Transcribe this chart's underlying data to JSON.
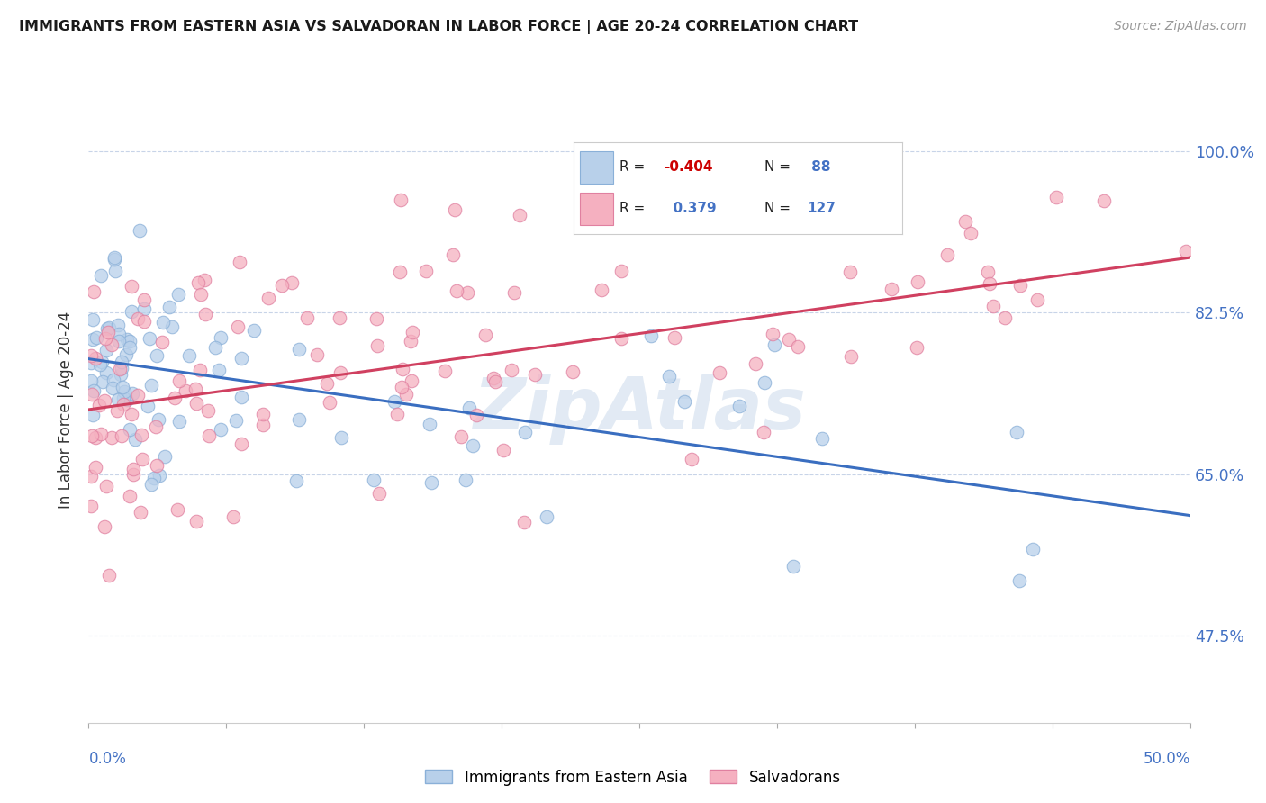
{
  "title": "IMMIGRANTS FROM EASTERN ASIA VS SALVADORAN IN LABOR FORCE | AGE 20-24 CORRELATION CHART",
  "source": "Source: ZipAtlas.com",
  "ylabel": "In Labor Force | Age 20-24",
  "yticks": [
    0.475,
    0.65,
    0.825,
    1.0
  ],
  "ytick_labels": [
    "47.5%",
    "65.0%",
    "82.5%",
    "100.0%"
  ],
  "xmin": 0.0,
  "xmax": 0.5,
  "ymin": 0.38,
  "ymax": 1.06,
  "blue_color": "#b8d0ea",
  "blue_edge": "#8ab0d8",
  "pink_color": "#f5b0c0",
  "pink_edge": "#e080a0",
  "blue_line_color": "#3a6ec0",
  "pink_line_color": "#d04060",
  "legend_label1": "Immigrants from Eastern Asia",
  "legend_label2": "Salvadorans",
  "blue_trend_x": [
    0.0,
    0.5
  ],
  "blue_trend_y": [
    0.775,
    0.605
  ],
  "pink_trend_x": [
    0.0,
    0.5
  ],
  "pink_trend_y": [
    0.72,
    0.885
  ],
  "watermark_text": "ZipAtlas",
  "title_fontsize": 12,
  "source_fontsize": 10,
  "legend_R1": "R = ",
  "legend_R1_val": "-0.404",
  "legend_N1": "N = ",
  "legend_N1_val": " 88",
  "legend_R2_val": "  0.379",
  "legend_N2_val": "127"
}
